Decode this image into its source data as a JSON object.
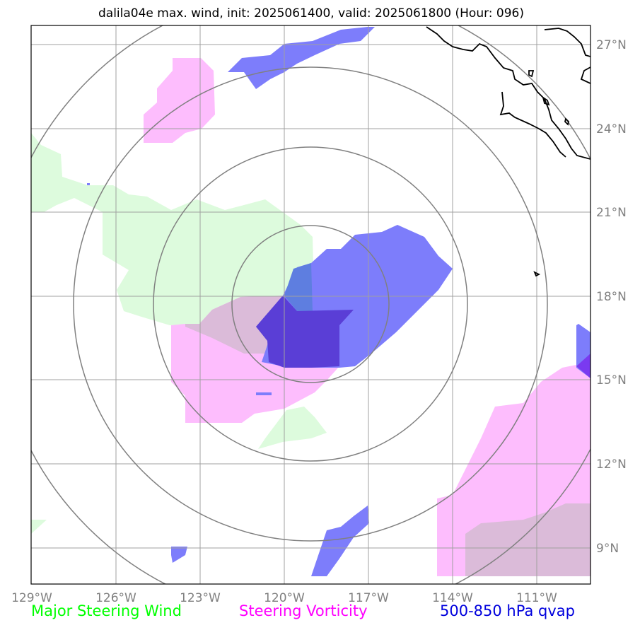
{
  "title": "dalila04e max. wind, init: 2025061400, valid: 2025061800 (Hour: 096)",
  "colors": {
    "wind_green": "#ddfbdd",
    "vorticity_pink": "#fdbdfd",
    "overlap_mauve": "#dbbbd9",
    "qvap_blue": "#7d7dfb",
    "qvap_dark": "#5a3ed6",
    "qvap_purple": "#7a3af0",
    "grid": "#a0a0a0",
    "range_rings": "#808080",
    "coast": "#000000"
  },
  "lon_ticks": [
    "129°W",
    "126°W",
    "123°W",
    "120°W",
    "117°W",
    "114°W",
    "111°W"
  ],
  "lat_ticks": [
    "27°N",
    "24°N",
    "21°N",
    "18°N",
    "15°N",
    "12°N",
    "9°N"
  ],
  "legend": {
    "wind": {
      "label": "Major Steering Wind",
      "color": "#00ff00"
    },
    "vorticity": {
      "label": "Steering Vorticity",
      "color": "#ff00ff"
    },
    "qvap": {
      "label": "500-850 hPa qvap",
      "color": "#0000dd"
    }
  }
}
